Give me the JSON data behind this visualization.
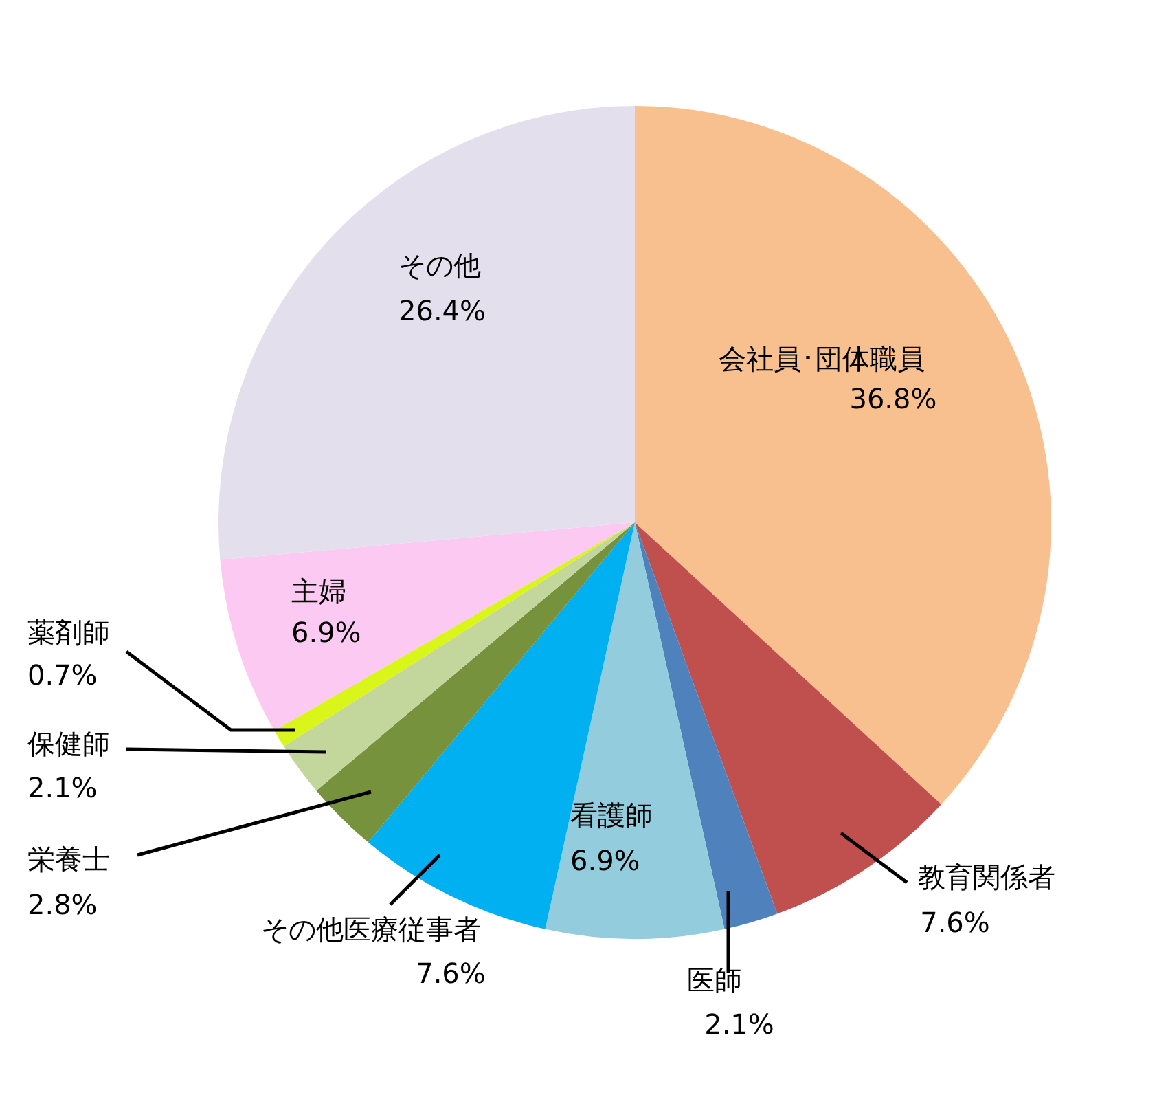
{
  "chart_data": {
    "type": "pie",
    "categories": [
      "会社員･団体職員",
      "教育関係者",
      "医師",
      "看護師",
      "その他医療従事者",
      "栄養士",
      "保健師",
      "薬剤師",
      "主婦",
      "その他"
    ],
    "values": [
      36.8,
      7.6,
      2.1,
      6.9,
      7.6,
      2.8,
      2.1,
      0.7,
      6.9,
      26.4
    ],
    "value_labels": [
      "36.8%",
      "7.6%",
      "2.1%",
      "6.9%",
      "7.6%",
      "2.8%",
      "2.1%",
      "0.7%",
      "6.9%",
      "26.4%"
    ],
    "colors": [
      "#f9c08f",
      "#c0504d",
      "#4f81bd",
      "#93cddd",
      "#00b0f0",
      "#76923c",
      "#c3d69b",
      "#d9f51a",
      "#fbc9f1",
      "#e4dfec"
    ]
  }
}
